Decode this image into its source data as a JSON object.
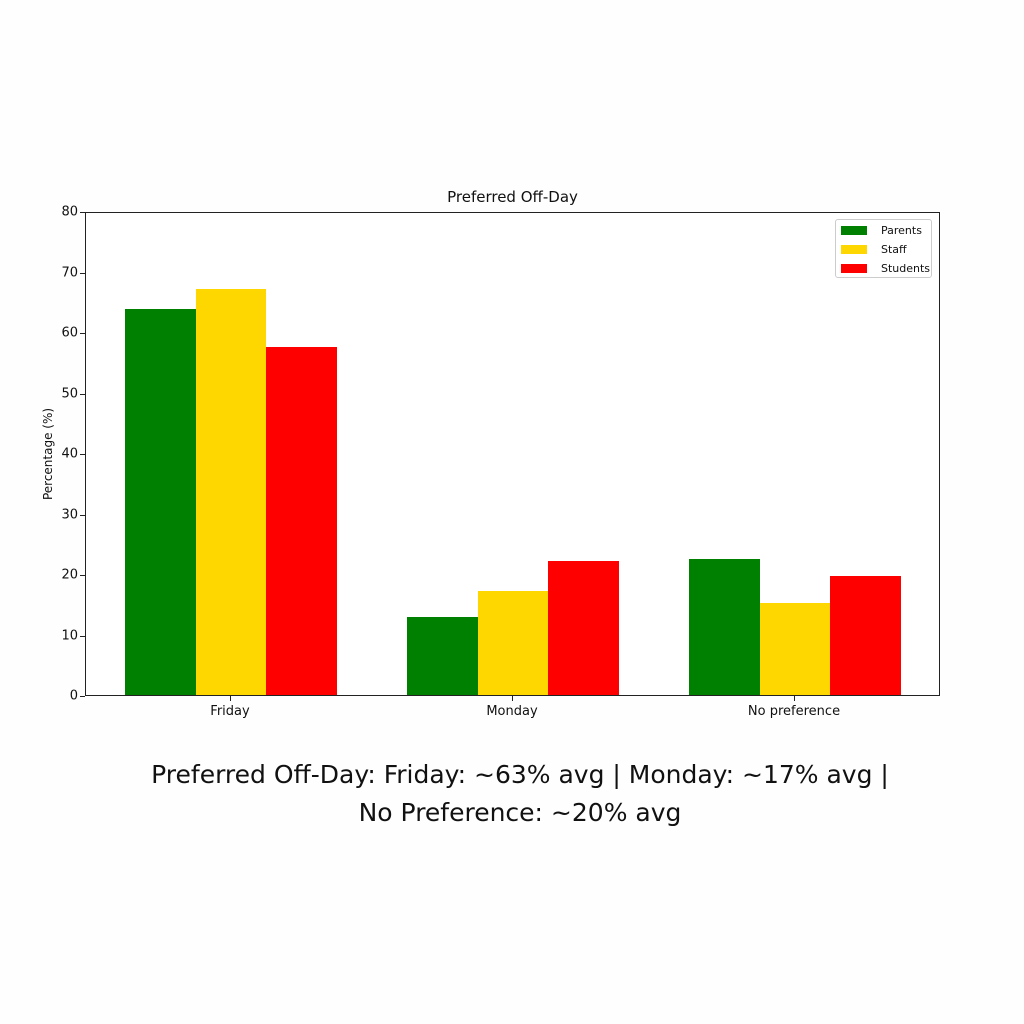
{
  "chart_data": {
    "type": "bar",
    "title": "Preferred Off-Day",
    "xlabel": "",
    "ylabel": "Percentage (%)",
    "ylim": [
      0,
      80
    ],
    "yticks": [
      0,
      10,
      20,
      30,
      40,
      50,
      60,
      70,
      80
    ],
    "categories": [
      "Friday",
      "Monday",
      "No preference"
    ],
    "series": [
      {
        "name": "Parents",
        "color": "#008000",
        "values": [
          64.0,
          13.1,
          22.6
        ]
      },
      {
        "name": "Staff",
        "color": "#FFD700",
        "values": [
          67.3,
          17.4,
          15.4
        ]
      },
      {
        "name": "Students",
        "color": "#FF0000",
        "values": [
          57.7,
          22.3,
          19.8
        ]
      }
    ],
    "legend_position": "upper right",
    "grid": false
  },
  "caption": {
    "line1": "Preferred Off-Day: Friday: ~63% avg | Monday: ~17% avg |",
    "line2": "No Preference: ~20% avg"
  }
}
